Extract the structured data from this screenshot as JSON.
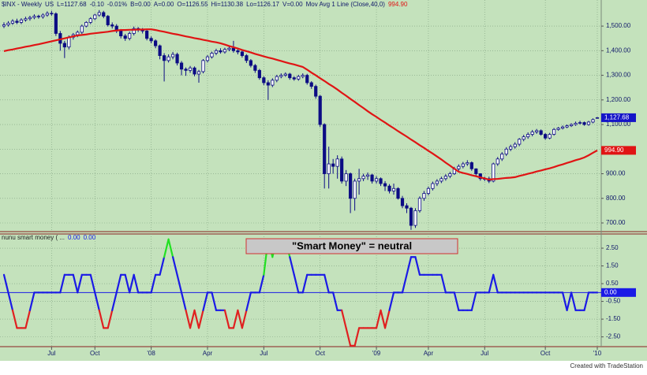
{
  "chart_data": [
    {
      "type": "candlestick",
      "header": [
        "$INX - Weekly",
        "US",
        "L=1127.68",
        "-0.10",
        "-0.01%",
        "B=0.00",
        "A=0.00",
        "O=1126.55",
        "Hi=1130.38",
        "Lo=1126.17",
        "V=0.00",
        "Mov Avg 1 Line (Close,40,0)",
        "994.90"
      ],
      "categories": [
        null,
        null,
        null,
        null,
        null,
        null,
        null,
        null,
        null,
        null,
        null,
        "Jul",
        null,
        null,
        null,
        null,
        null,
        null,
        null,
        null,
        null,
        "Oct",
        null,
        null,
        null,
        null,
        null,
        null,
        null,
        null,
        null,
        null,
        null,
        null,
        "'08",
        null,
        null,
        null,
        null,
        null,
        null,
        null,
        null,
        null,
        null,
        null,
        null,
        "Apr",
        null,
        null,
        null,
        null,
        null,
        null,
        null,
        null,
        null,
        null,
        null,
        null,
        "Jul",
        null,
        null,
        null,
        null,
        null,
        null,
        null,
        null,
        null,
        null,
        null,
        null,
        "Oct",
        null,
        null,
        null,
        null,
        null,
        null,
        null,
        null,
        null,
        null,
        null,
        null,
        "'09",
        null,
        null,
        null,
        null,
        null,
        null,
        null,
        null,
        null,
        null,
        null,
        "Apr",
        null,
        null,
        null,
        null,
        null,
        null,
        null,
        null,
        null,
        null,
        null,
        null,
        "Jul",
        null,
        null,
        null,
        null,
        null,
        null,
        null,
        null,
        null,
        null,
        null,
        null,
        null,
        "Oct",
        null,
        null,
        null,
        null,
        null,
        null,
        null,
        null,
        null,
        null,
        null,
        "'10"
      ],
      "open": [
        1500,
        1505,
        1512,
        1520,
        1515,
        1525,
        1530,
        1535,
        1540,
        1538,
        1545,
        1552,
        1550,
        1470,
        1430,
        1415,
        1455,
        1465,
        1475,
        1500,
        1515,
        1530,
        1545,
        1555,
        1540,
        1505,
        1500,
        1480,
        1460,
        1450,
        1470,
        1490,
        1485,
        1480,
        1450,
        1440,
        1420,
        1380,
        1360,
        1375,
        1385,
        1350,
        1325,
        1320,
        1330,
        1305,
        1315,
        1360,
        1375,
        1390,
        1400,
        1395,
        1405,
        1410,
        1400,
        1395,
        1380,
        1360,
        1340,
        1320,
        1290,
        1270,
        1260,
        1280,
        1295,
        1300,
        1305,
        1290,
        1285,
        1295,
        1300,
        1270,
        1255,
        1215,
        1100,
        900,
        940,
        930,
        960,
        870,
        900,
        800,
        870,
        880,
        890,
        895,
        870,
        880,
        860,
        850,
        830,
        840,
        800,
        770,
        760,
        690,
        750,
        800,
        820,
        840,
        860,
        870,
        880,
        890,
        900,
        920,
        930,
        940,
        945,
        920,
        900,
        880,
        880,
        870,
        940,
        960,
        980,
        1000,
        1010,
        1020,
        1040,
        1050,
        1060,
        1070,
        1075,
        1060,
        1045,
        1060,
        1080,
        1085,
        1090,
        1095,
        1100,
        1105,
        1108,
        1100,
        1110,
        1126.55
      ],
      "high": [
        1515,
        1520,
        1528,
        1530,
        1532,
        1538,
        1542,
        1548,
        1546,
        1552,
        1560,
        1562,
        1556,
        1480,
        1440,
        1462,
        1472,
        1482,
        1506,
        1520,
        1536,
        1550,
        1565,
        1562,
        1545,
        1515,
        1508,
        1488,
        1468,
        1478,
        1498,
        1496,
        1492,
        1486,
        1458,
        1446,
        1425,
        1390,
        1385,
        1395,
        1392,
        1358,
        1332,
        1338,
        1336,
        1322,
        1366,
        1382,
        1396,
        1408,
        1410,
        1412,
        1420,
        1440,
        1408,
        1400,
        1386,
        1366,
        1346,
        1326,
        1296,
        1280,
        1288,
        1302,
        1308,
        1312,
        1310,
        1296,
        1302,
        1308,
        1306,
        1276,
        1262,
        1220,
        1105,
        1010,
        960,
        975,
        970,
        915,
        905,
        880,
        920,
        900,
        905,
        900,
        890,
        885,
        870,
        858,
        860,
        845,
        810,
        780,
        765,
        760,
        808,
        830,
        848,
        868,
        878,
        888,
        898,
        908,
        928,
        938,
        948,
        955,
        950,
        922,
        902,
        888,
        888,
        945,
        968,
        988,
        1008,
        1018,
        1028,
        1045,
        1058,
        1068,
        1078,
        1082,
        1080,
        1065,
        1066,
        1086,
        1090,
        1096,
        1100,
        1105,
        1112,
        1115,
        1112,
        1115,
        1125,
        1130.38
      ],
      "low": [
        1492,
        1498,
        1505,
        1508,
        1508,
        1518,
        1522,
        1528,
        1530,
        1530,
        1538,
        1542,
        1460,
        1400,
        1370,
        1405,
        1445,
        1455,
        1468,
        1495,
        1508,
        1524,
        1538,
        1532,
        1498,
        1490,
        1472,
        1450,
        1440,
        1442,
        1462,
        1476,
        1470,
        1442,
        1430,
        1410,
        1365,
        1275,
        1352,
        1365,
        1340,
        1300,
        1298,
        1310,
        1296,
        1270,
        1308,
        1352,
        1368,
        1382,
        1388,
        1388,
        1398,
        1392,
        1385,
        1372,
        1350,
        1332,
        1310,
        1282,
        1260,
        1200,
        1252,
        1272,
        1288,
        1294,
        1282,
        1278,
        1278,
        1288,
        1262,
        1245,
        1205,
        1090,
        840,
        840,
        900,
        880,
        860,
        850,
        740,
        750,
        815,
        870,
        875,
        860,
        860,
        850,
        830,
        820,
        815,
        795,
        760,
        740,
        672,
        680,
        742,
        790,
        812,
        832,
        850,
        862,
        872,
        882,
        895,
        912,
        922,
        932,
        912,
        890,
        872,
        870,
        862,
        865,
        932,
        952,
        972,
        992,
        1002,
        1012,
        1032,
        1042,
        1052,
        1062,
        1055,
        1038,
        1040,
        1055,
        1075,
        1080,
        1085,
        1090,
        1095,
        1100,
        1095,
        1095,
        1105,
        1126.17
      ],
      "close": [
        1505,
        1512,
        1520,
        1515,
        1525,
        1530,
        1535,
        1540,
        1538,
        1545,
        1552,
        1550,
        1470,
        1430,
        1415,
        1455,
        1465,
        1475,
        1500,
        1515,
        1530,
        1545,
        1555,
        1540,
        1505,
        1500,
        1480,
        1460,
        1450,
        1470,
        1490,
        1485,
        1480,
        1450,
        1440,
        1420,
        1380,
        1360,
        1375,
        1385,
        1350,
        1325,
        1320,
        1330,
        1305,
        1315,
        1360,
        1375,
        1390,
        1400,
        1395,
        1405,
        1410,
        1400,
        1395,
        1380,
        1360,
        1340,
        1320,
        1290,
        1270,
        1260,
        1280,
        1295,
        1300,
        1305,
        1290,
        1285,
        1295,
        1300,
        1270,
        1255,
        1215,
        1100,
        900,
        940,
        930,
        960,
        870,
        900,
        800,
        870,
        880,
        890,
        895,
        870,
        880,
        860,
        850,
        830,
        840,
        800,
        770,
        760,
        690,
        750,
        800,
        820,
        840,
        860,
        870,
        880,
        890,
        900,
        920,
        930,
        940,
        945,
        920,
        900,
        880,
        880,
        870,
        940,
        960,
        980,
        1000,
        1010,
        1020,
        1040,
        1050,
        1060,
        1070,
        1075,
        1060,
        1045,
        1060,
        1080,
        1085,
        1090,
        1095,
        1100,
        1105,
        1108,
        1100,
        1110,
        1120,
        1127.68
      ],
      "close_tag": "1,127.68",
      "color": "#0c0c84",
      "up_fill": "#ffffff",
      "tag_color": "#1414c8",
      "moving_average": {
        "color": "#e01414",
        "tag": "994.90",
        "values": [
          1398,
          1402,
          1405,
          1409,
          1412,
          1416,
          1419,
          1423,
          1426,
          1430,
          1434,
          1438,
          1442,
          1446,
          1450,
          1454,
          1458,
          1462,
          1464,
          1466,
          1469,
          1471,
          1473,
          1475,
          1477,
          1480,
          1482,
          1484,
          1484,
          1485,
          1485,
          1486,
          1486,
          1487,
          1487,
          1484,
          1480,
          1477,
          1473,
          1469,
          1466,
          1462,
          1458,
          1455,
          1451,
          1448,
          1444,
          1441,
          1437,
          1434,
          1430,
          1425,
          1419,
          1414,
          1409,
          1403,
          1398,
          1393,
          1387,
          1382,
          1377,
          1372,
          1368,
          1363,
          1358,
          1353,
          1348,
          1344,
          1339,
          1334,
          1323,
          1311,
          1300,
          1288,
          1277,
          1265,
          1254,
          1242,
          1229,
          1217,
          1204,
          1192,
          1179,
          1167,
          1154,
          1142,
          1131,
          1119,
          1108,
          1096,
          1085,
          1073,
          1062,
          1051,
          1039,
          1028,
          1016,
          1005,
          993,
          982,
          970,
          958,
          945,
          933,
          920,
          908,
          903,
          899,
          894,
          890,
          885,
          881,
          876,
          878,
          879,
          881,
          883,
          884,
          886,
          891,
          895,
          900,
          904,
          909,
          913,
          918,
          922,
          927,
          933,
          938,
          944,
          949,
          955,
          960,
          966,
          975,
          985,
          994.9
        ]
      },
      "ylim": [
        668,
        1606
      ],
      "yticks": [
        {
          "value": 700,
          "label": "700.00"
        },
        {
          "value": 800,
          "label": "800.00"
        },
        {
          "value": 900,
          "label": "900.00"
        },
        {
          "value": 1000,
          "label": "1,000.00"
        },
        {
          "value": 1100,
          "label": "1,100.00"
        },
        {
          "value": 1200,
          "label": "1,200.00"
        },
        {
          "value": 1300,
          "label": "1,300.00"
        },
        {
          "value": 1400,
          "label": "1,400.00"
        },
        {
          "value": 1500,
          "label": "1,500.00"
        }
      ],
      "grid": true
    },
    {
      "type": "line",
      "header": [
        "nunu smart money ( ...",
        "0.00",
        "0.00"
      ],
      "values": [
        1,
        0,
        -1,
        -2,
        -2,
        -2,
        -1,
        0,
        0,
        0,
        0,
        0,
        0,
        0,
        1,
        1,
        1,
        0,
        1,
        1,
        1,
        0,
        -1,
        -2,
        -2,
        -1,
        0,
        1,
        1,
        0,
        1,
        0,
        0,
        0,
        0,
        1,
        1,
        2,
        3,
        2,
        1,
        0,
        -1,
        -2,
        -1,
        -2,
        -1,
        0,
        0,
        -1,
        -1,
        -1,
        -2,
        -2,
        -1,
        -2,
        -1,
        0,
        0,
        0,
        1,
        3,
        2,
        3,
        3,
        3,
        2,
        1,
        0,
        0,
        1,
        1,
        1,
        1,
        1,
        0,
        0,
        -1,
        -1,
        -2,
        -3,
        -3,
        -2,
        -2,
        -2,
        -2,
        -2,
        -1,
        -2,
        -1,
        0,
        0,
        0,
        1,
        2,
        2,
        1,
        1,
        1,
        1,
        1,
        1,
        0,
        0,
        0,
        -1,
        -1,
        -1,
        -1,
        0,
        0,
        0,
        0,
        1,
        0,
        0,
        0,
        0,
        0,
        0,
        0,
        0,
        0,
        0,
        0,
        0,
        0,
        0,
        0,
        0,
        -1,
        0,
        -1,
        -1,
        -1,
        0,
        0,
        0
      ],
      "colors": {
        "line": "#1a1ae6",
        "upper": "#22e022",
        "lower": "#e02020"
      },
      "reference_line": {
        "value": 0,
        "label": "0.00",
        "color": "#1a1ae6"
      },
      "annotation": "\"Smart Money\" = neutral",
      "ylim": [
        -3.05,
        3.3
      ],
      "yticks": [
        {
          "value": 2.5,
          "label": "2.50"
        },
        {
          "value": 1.5,
          "label": "1.50"
        },
        {
          "value": 0.5,
          "label": "0.50"
        },
        {
          "value": -0.5,
          "label": "-0.50"
        },
        {
          "value": -1.5,
          "label": "-1.50"
        },
        {
          "value": -2.5,
          "label": "-2.50"
        }
      ],
      "grid": true
    }
  ],
  "footer": "Created with TradeStation"
}
